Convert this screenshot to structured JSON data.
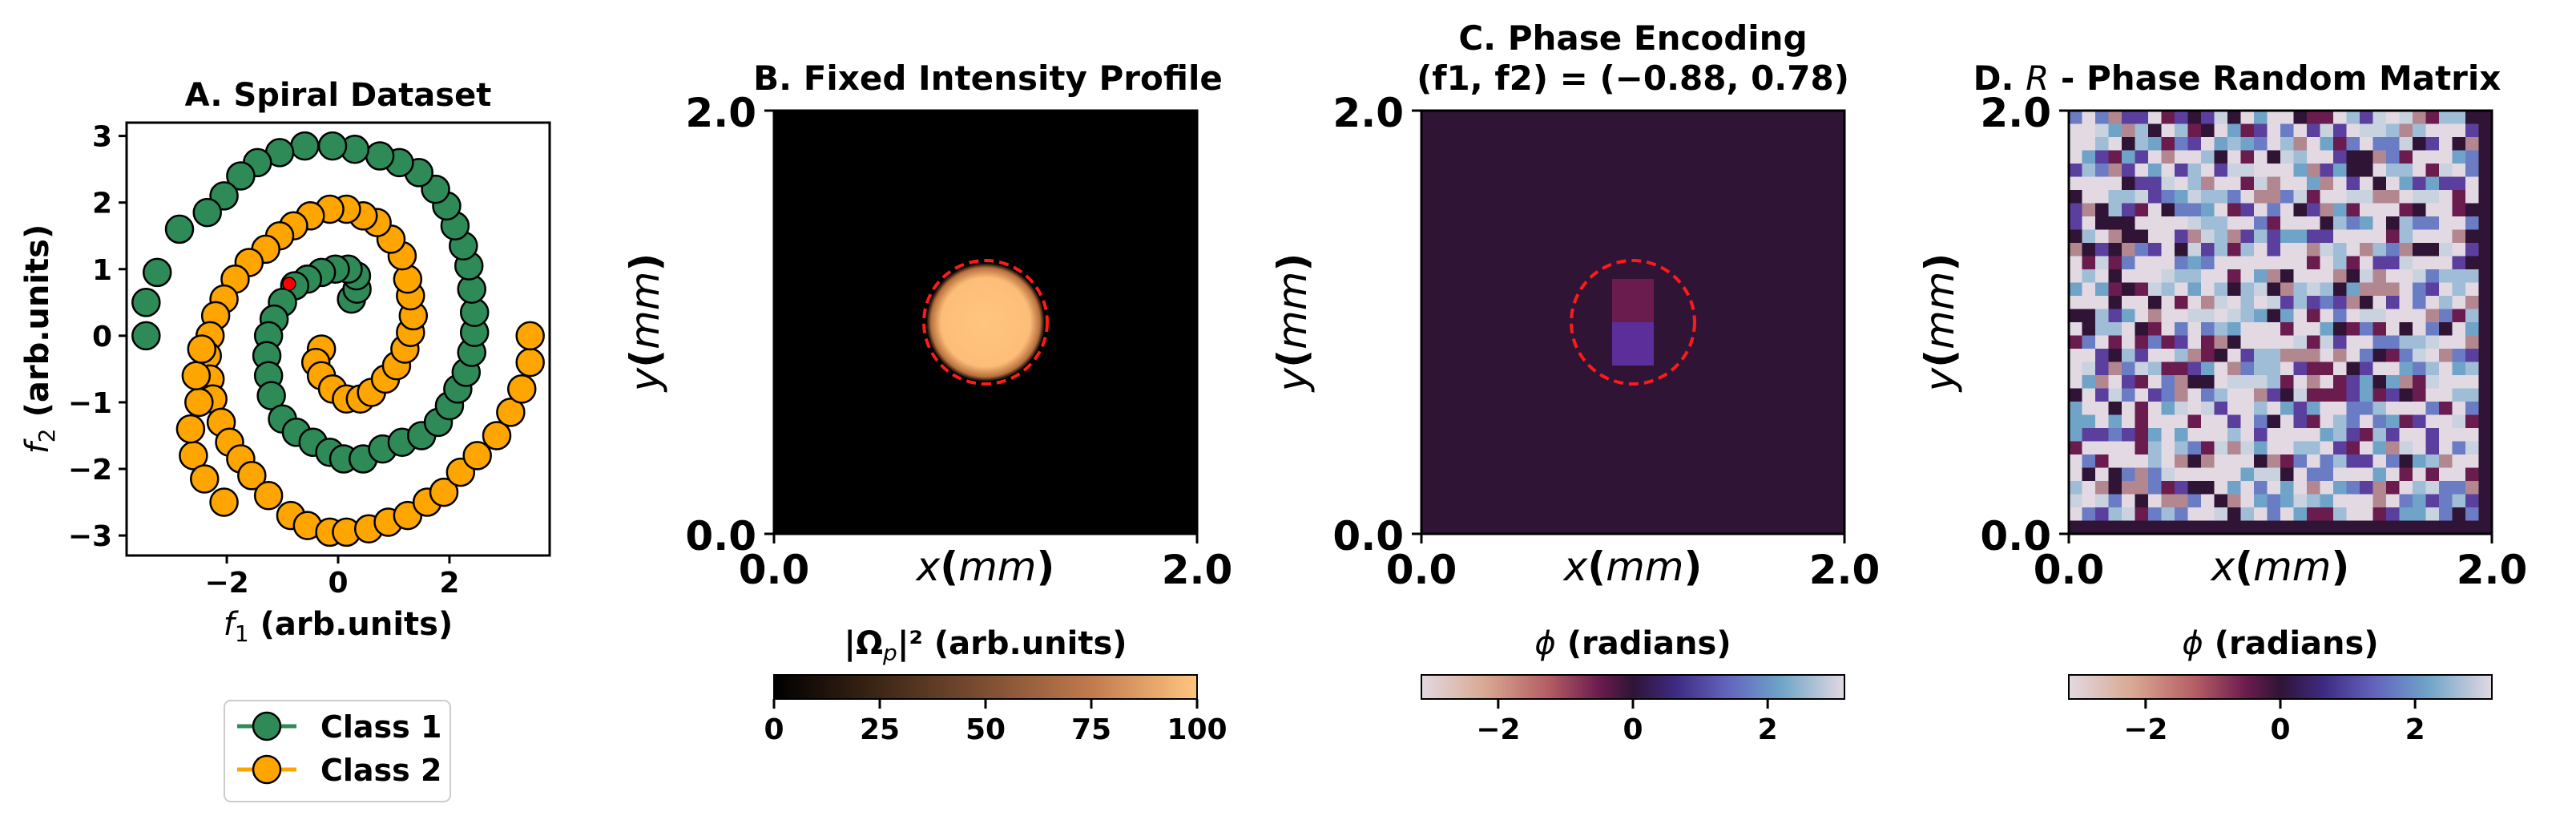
{
  "panelA": {
    "chart_data": {
      "type": "scatter",
      "title": "A. Spiral Dataset",
      "xlabel_var": "f",
      "xlabel_sub": "1",
      "xlabel_rest": " (arb.units)",
      "ylabel_var": "f",
      "ylabel_sub": "2",
      "ylabel_rest": " (arb.units)",
      "xlim": [
        -3.8,
        3.8
      ],
      "ylim": [
        -3.3,
        3.2
      ],
      "xticks": [
        -2,
        0,
        2
      ],
      "xtick_labels": [
        "−2",
        "0",
        "2"
      ],
      "yticks": [
        -3,
        -2,
        -1,
        0,
        1,
        2,
        3
      ],
      "ytick_labels": [
        "−3",
        "−2",
        "−1",
        "0",
        "1",
        "2",
        "3"
      ],
      "series": [
        {
          "name": "Class 1",
          "color": "#2e8b57",
          "points": [
            [
              0.24,
              0.55
            ],
            [
              0.34,
              0.7
            ],
            [
              0.33,
              0.9
            ],
            [
              0.18,
              1.0
            ],
            [
              -0.05,
              1.0
            ],
            [
              -0.3,
              0.95
            ],
            [
              -0.55,
              0.85
            ],
            [
              -0.78,
              0.75
            ],
            [
              -1.0,
              0.5
            ],
            [
              -1.15,
              0.25
            ],
            [
              -1.25,
              0.0
            ],
            [
              -1.28,
              -0.3
            ],
            [
              -1.25,
              -0.6
            ],
            [
              -1.2,
              -0.9
            ],
            [
              -1.0,
              -1.25
            ],
            [
              -0.75,
              -1.45
            ],
            [
              -0.45,
              -1.6
            ],
            [
              -0.15,
              -1.75
            ],
            [
              0.1,
              -1.85
            ],
            [
              0.45,
              -1.85
            ],
            [
              0.8,
              -1.7
            ],
            [
              1.15,
              -1.6
            ],
            [
              1.5,
              -1.5
            ],
            [
              1.8,
              -1.3
            ],
            [
              2.0,
              -1.05
            ],
            [
              2.15,
              -0.8
            ],
            [
              2.3,
              -0.55
            ],
            [
              2.4,
              -0.25
            ],
            [
              2.45,
              0.05
            ],
            [
              2.45,
              0.35
            ],
            [
              2.4,
              0.7
            ],
            [
              2.35,
              1.05
            ],
            [
              2.25,
              1.35
            ],
            [
              2.1,
              1.65
            ],
            [
              1.95,
              1.95
            ],
            [
              1.75,
              2.2
            ],
            [
              1.45,
              2.45
            ],
            [
              1.1,
              2.6
            ],
            [
              0.75,
              2.7
            ],
            [
              0.3,
              2.8
            ],
            [
              -0.1,
              2.85
            ],
            [
              -0.6,
              2.85
            ],
            [
              -1.05,
              2.75
            ],
            [
              -1.45,
              2.6
            ],
            [
              -1.75,
              2.4
            ],
            [
              -2.05,
              2.1
            ],
            [
              -2.35,
              1.85
            ],
            [
              -2.85,
              1.6
            ],
            [
              -3.25,
              0.95
            ],
            [
              -3.45,
              0.5
            ],
            [
              -3.45,
              0.0
            ]
          ]
        },
        {
          "name": "Class 2",
          "color": "#ffa500",
          "points": [
            [
              -0.3,
              -0.2
            ],
            [
              -0.4,
              -0.4
            ],
            [
              -0.3,
              -0.6
            ],
            [
              -0.1,
              -0.8
            ],
            [
              0.15,
              -0.95
            ],
            [
              0.4,
              -0.95
            ],
            [
              0.6,
              -0.85
            ],
            [
              0.85,
              -0.65
            ],
            [
              1.05,
              -0.45
            ],
            [
              1.2,
              -0.2
            ],
            [
              1.3,
              0.05
            ],
            [
              1.35,
              0.3
            ],
            [
              1.3,
              0.6
            ],
            [
              1.25,
              0.85
            ],
            [
              1.15,
              1.2
            ],
            [
              0.95,
              1.45
            ],
            [
              0.7,
              1.7
            ],
            [
              0.45,
              1.8
            ],
            [
              0.15,
              1.9
            ],
            [
              -0.15,
              1.9
            ],
            [
              -0.5,
              1.8
            ],
            [
              -0.8,
              1.65
            ],
            [
              -1.05,
              1.5
            ],
            [
              -1.3,
              1.3
            ],
            [
              -1.6,
              1.1
            ],
            [
              -1.85,
              0.85
            ],
            [
              -2.05,
              0.55
            ],
            [
              -2.2,
              0.3
            ],
            [
              -2.3,
              0.0
            ],
            [
              -2.35,
              -0.3
            ],
            [
              -2.3,
              -0.65
            ],
            [
              -2.25,
              -0.95
            ],
            [
              -2.1,
              -1.3
            ],
            [
              -1.95,
              -1.6
            ],
            [
              -1.75,
              -1.85
            ],
            [
              -1.55,
              -2.1
            ],
            [
              -1.25,
              -2.4
            ],
            [
              -0.85,
              -2.7
            ],
            [
              -0.55,
              -2.85
            ],
            [
              -0.15,
              -2.95
            ],
            [
              0.15,
              -2.95
            ],
            [
              0.55,
              -2.9
            ],
            [
              0.9,
              -2.8
            ],
            [
              1.25,
              -2.7
            ],
            [
              1.6,
              -2.5
            ],
            [
              1.9,
              -2.35
            ],
            [
              2.2,
              -2.05
            ],
            [
              2.5,
              -1.8
            ],
            [
              2.85,
              -1.5
            ],
            [
              3.1,
              -1.15
            ],
            [
              3.3,
              -0.8
            ],
            [
              3.45,
              -0.4
            ],
            [
              3.45,
              0.0
            ],
            [
              -2.5,
              -1.0
            ],
            [
              -2.6,
              -1.8
            ],
            [
              -2.65,
              -1.4
            ],
            [
              -2.55,
              -0.6
            ],
            [
              -2.45,
              -0.2
            ],
            [
              -2.4,
              -2.15
            ],
            [
              -2.05,
              -2.5
            ]
          ]
        }
      ],
      "highlight_point": [
        -0.88,
        0.78
      ],
      "highlight_color": "#ff0000"
    },
    "legend": [
      "Class 1",
      "Class 2"
    ]
  },
  "panelB": {
    "title": "B. Fixed Intensity Profile",
    "xlabel_var": "x",
    "xlabel_unit": "mm",
    "ylabel_var": "y",
    "ylabel_unit": "mm",
    "axis_min_label": "0.0",
    "axis_max_label": "2.0",
    "colorbar_label_pre": "|",
    "colorbar_label_sym": "Ω",
    "colorbar_label_sub": "p",
    "colorbar_label_post": "|² (arb.units)",
    "colorbar_ticks": [
      "0",
      "25",
      "50",
      "75",
      "100"
    ],
    "chart_data": {
      "type": "heatmap",
      "xlim": [
        0,
        2
      ],
      "ylim": [
        0,
        2
      ],
      "beam_center": [
        1.0,
        1.0
      ],
      "beam_radius_mm": 0.28,
      "circle_radius_mm": 0.3,
      "intensity_max": 100,
      "colorbar_range": [
        0,
        100
      ],
      "colormap": "copper"
    }
  },
  "panelC": {
    "title_line1": "C. Phase Encoding",
    "title_line2": "(f1, f2) = (−0.88, 0.78)",
    "xlabel_var": "x",
    "xlabel_unit": "mm",
    "ylabel_var": "y",
    "ylabel_unit": "mm",
    "axis_min_label": "0.0",
    "axis_max_label": "2.0",
    "colorbar_label_sym": "ϕ",
    "colorbar_label_rest": " (radians)",
    "colorbar_ticks": [
      "−2",
      "0",
      "2"
    ],
    "chart_data": {
      "type": "heatmap",
      "xlim": [
        0,
        2
      ],
      "ylim": [
        0,
        2
      ],
      "encoded_features": [
        -0.88,
        0.78
      ],
      "background_phase": 0,
      "circle_radius_mm": 0.3,
      "colorbar_range": [
        -3.14,
        3.14
      ],
      "colormap": "twilight"
    }
  },
  "panelD": {
    "title_pre": "D. ",
    "title_sym": "R",
    "title_post": " - Phase Random Matrix",
    "xlabel_var": "x",
    "xlabel_unit": "mm",
    "ylabel_var": "y",
    "ylabel_unit": "mm",
    "axis_min_label": "0.0",
    "axis_max_label": "2.0",
    "colorbar_label_sym": "ϕ",
    "colorbar_label_rest": " (radians)",
    "colorbar_ticks": [
      "−2",
      "0",
      "2"
    ],
    "chart_data": {
      "type": "heatmap",
      "xlim": [
        0,
        2
      ],
      "ylim": [
        0,
        2
      ],
      "grid": 32,
      "distribution": "random phase",
      "colorbar_range": [
        -3.14,
        3.14
      ],
      "colormap": "twilight"
    }
  }
}
